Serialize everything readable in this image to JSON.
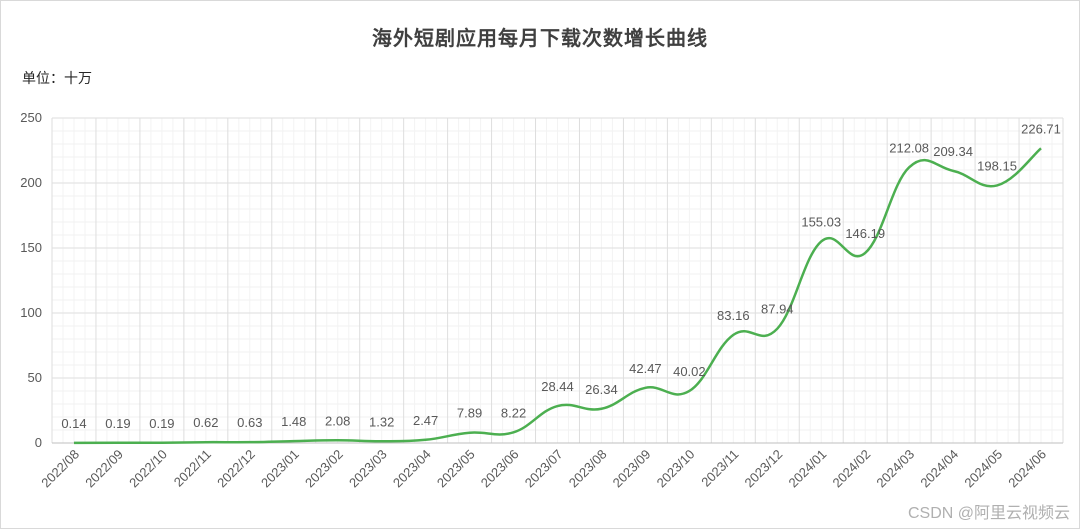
{
  "chart_data": {
    "type": "line",
    "title": "海外短剧应用每月下载次数增长曲线",
    "unit_label": "单位：十万",
    "xlabel": "",
    "ylabel": "",
    "ylim": [
      0,
      250
    ],
    "yticks": [
      "0",
      "50",
      "100",
      "150",
      "200",
      "250"
    ],
    "grid": true,
    "line_color": "#4caf50",
    "categories": [
      "2022/08",
      "2022/09",
      "2022/10",
      "2022/11",
      "2022/12",
      "2023/01",
      "2023/02",
      "2023/03",
      "2023/04",
      "2023/05",
      "2023/06",
      "2023/07",
      "2023/08",
      "2023/09",
      "2023/10",
      "2023/11",
      "2023/12",
      "2024/01",
      "2024/02",
      "2024/03",
      "2024/04",
      "2024/05",
      "2024/06"
    ],
    "values": [
      0.14,
      0.19,
      0.19,
      0.62,
      0.63,
      1.48,
      2.08,
      1.32,
      2.47,
      7.89,
      8.22,
      28.44,
      26.34,
      42.47,
      40.02,
      83.16,
      87.94,
      155.03,
      146.19,
      212.08,
      209.34,
      198.15,
      226.71
    ],
    "value_labels": [
      "0.14",
      "0.19",
      "0.19",
      "0.62",
      "0.63",
      "1.48",
      "2.08",
      "1.32",
      "2.47",
      "7.89",
      "8.22",
      "28.44",
      "26.34",
      "42.47",
      "40.02",
      "83.16",
      "87.94",
      "155.03",
      "146.19",
      "212.08",
      "209.34",
      "198.15",
      "226.71"
    ]
  },
  "watermark": "CSDN @阿里云视频云"
}
